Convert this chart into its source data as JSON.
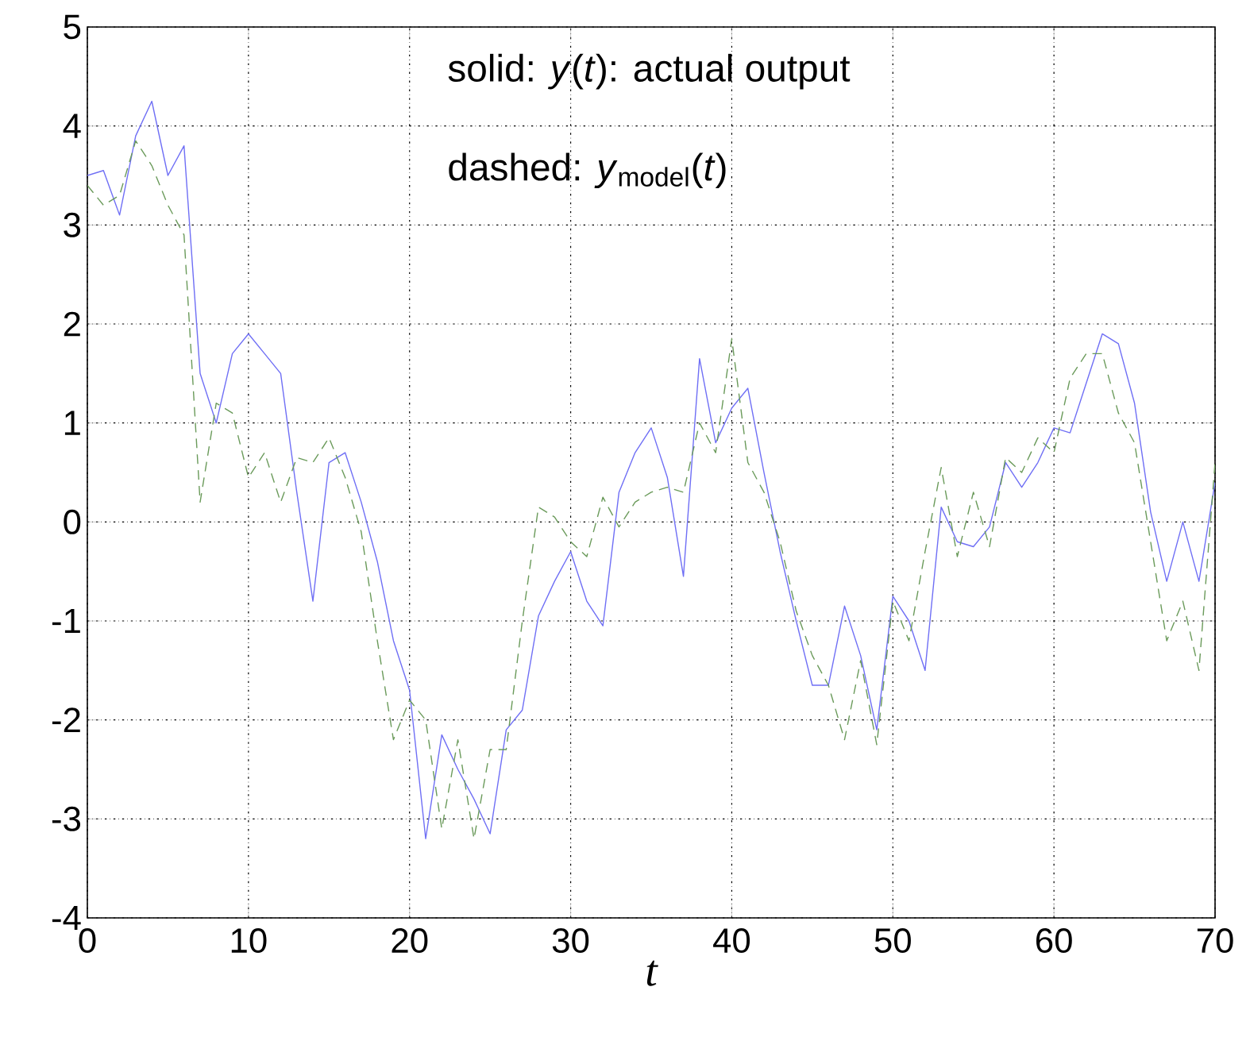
{
  "chart_data": {
    "type": "line",
    "xlabel": "t",
    "x": [
      0,
      1,
      2,
      3,
      4,
      5,
      6,
      7,
      8,
      9,
      10,
      11,
      12,
      13,
      14,
      15,
      16,
      17,
      18,
      19,
      20,
      21,
      22,
      23,
      24,
      25,
      26,
      27,
      28,
      29,
      30,
      31,
      32,
      33,
      34,
      35,
      36,
      37,
      38,
      39,
      40,
      41,
      42,
      43,
      44,
      45,
      46,
      47,
      48,
      49,
      50,
      51,
      52,
      53,
      54,
      55,
      56,
      57,
      58,
      59,
      60,
      61,
      62,
      63,
      64,
      65,
      66,
      67,
      68,
      69,
      70
    ],
    "series": [
      {
        "color": "#6f6ff5",
        "line_style": "solid",
        "values": [
          3.5,
          3.55,
          3.1,
          3.9,
          4.25,
          3.5,
          3.8,
          1.5,
          1.0,
          1.7,
          1.9,
          1.7,
          1.5,
          0.3,
          -0.8,
          0.6,
          0.7,
          0.2,
          -0.4,
          -1.2,
          -1.7,
          -3.2,
          -2.15,
          -2.5,
          -2.8,
          -3.15,
          -2.1,
          -1.9,
          -0.95,
          -0.6,
          -0.3,
          -0.8,
          -1.05,
          0.3,
          0.7,
          0.95,
          0.45,
          -0.55,
          1.65,
          0.8,
          1.15,
          1.35,
          0.5,
          -0.3,
          -1.0,
          -1.65,
          -1.65,
          -0.85,
          -1.35,
          -2.1,
          -0.75,
          -1.0,
          -1.5,
          0.15,
          -0.2,
          -0.25,
          -0.05,
          0.6,
          0.35,
          0.6,
          0.95,
          0.9,
          1.4,
          1.9,
          1.8,
          1.2,
          0.1,
          -0.6,
          0.0,
          -0.6,
          0.4
        ]
      },
      {
        "color": "#6a9a5a",
        "line_style": "dashed",
        "values": [
          3.4,
          3.2,
          3.3,
          3.85,
          3.6,
          3.2,
          2.9,
          0.2,
          1.2,
          1.1,
          0.45,
          0.7,
          0.2,
          0.65,
          0.6,
          0.85,
          0.45,
          -0.1,
          -1.2,
          -2.2,
          -1.8,
          -2.0,
          -3.1,
          -2.2,
          -3.2,
          -2.3,
          -2.3,
          -1.0,
          0.15,
          0.05,
          -0.2,
          -0.35,
          0.25,
          -0.05,
          0.2,
          0.3,
          0.35,
          0.3,
          1.0,
          0.7,
          1.85,
          0.6,
          0.3,
          -0.2,
          -0.9,
          -1.35,
          -1.65,
          -2.2,
          -1.4,
          -2.25,
          -0.8,
          -1.2,
          -0.3,
          0.55,
          -0.35,
          0.3,
          -0.25,
          0.65,
          0.5,
          0.85,
          0.7,
          1.45,
          1.7,
          1.7,
          1.1,
          0.8,
          -0.2,
          -1.2,
          -0.8,
          -1.5,
          0.6
        ]
      }
    ],
    "xlim": [
      0,
      70
    ],
    "ylim": [
      -4,
      5
    ],
    "xticks": [
      0,
      10,
      20,
      30,
      40,
      50,
      60,
      70
    ],
    "yticks": [
      -4,
      -3,
      -2,
      -1,
      0,
      1,
      2,
      3,
      4,
      5
    ],
    "grid": true,
    "annotations": [
      "solid: *y*(*t*): actual output",
      "dashed: *y*$_{model}$(*t*)"
    ]
  }
}
